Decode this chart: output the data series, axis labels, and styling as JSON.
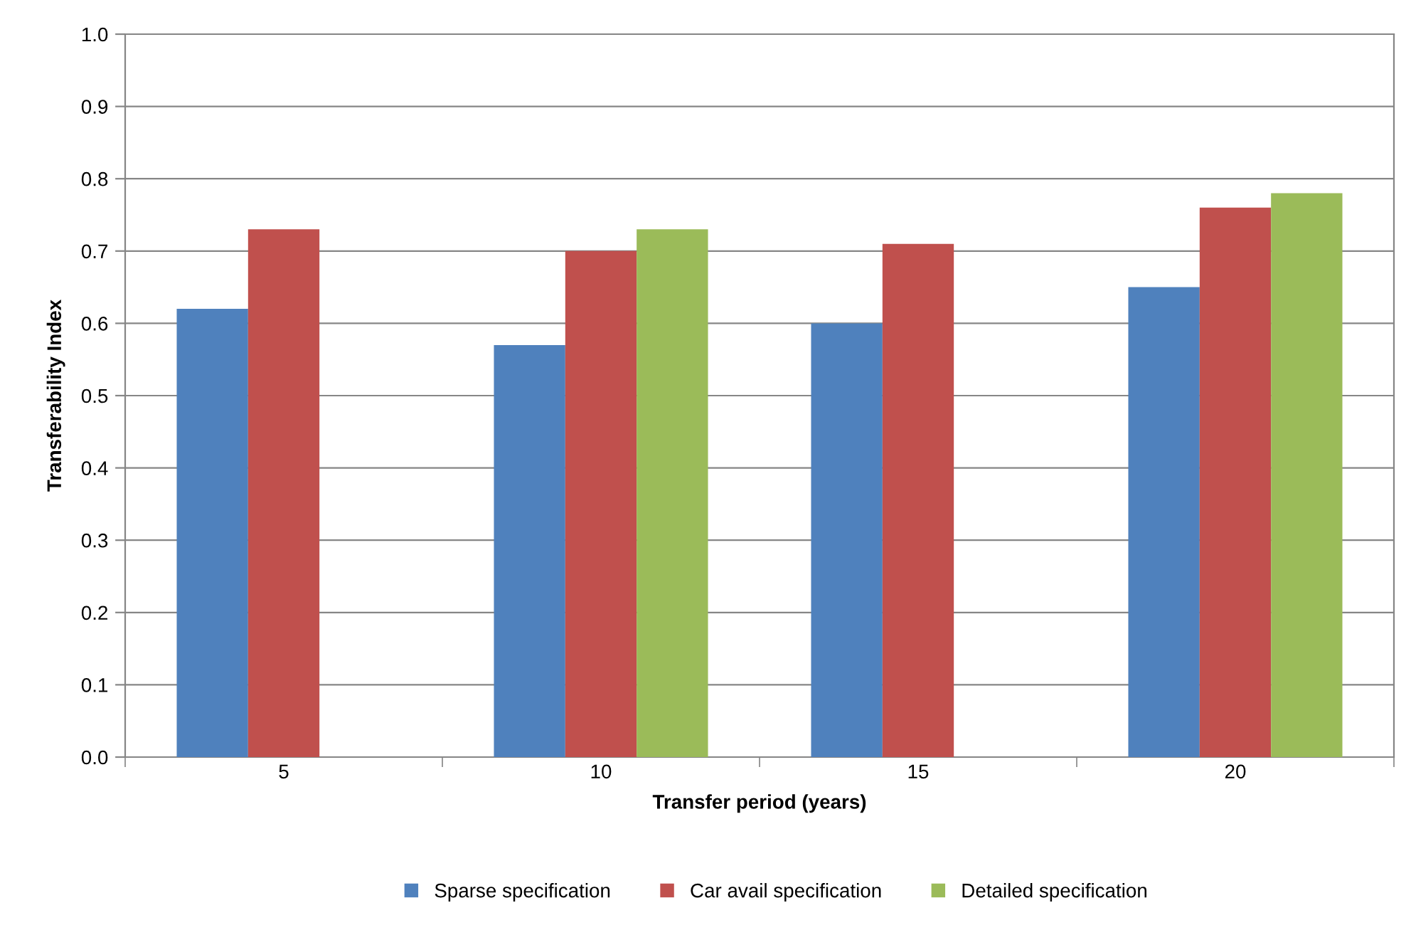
{
  "chart_data": {
    "type": "bar",
    "xlabel": "Transfer period (years)",
    "ylabel": "Transferability Index",
    "categories": [
      "5",
      "10",
      "15",
      "20"
    ],
    "series": [
      {
        "name": "Sparse specification",
        "color": "#4f81bd",
        "values": [
          0.62,
          0.57,
          0.6,
          0.65
        ]
      },
      {
        "name": "Car avail specification",
        "color": "#c0504d",
        "values": [
          0.73,
          0.7,
          0.71,
          0.76
        ]
      },
      {
        "name": "Detailed specification",
        "color": "#9bbb59",
        "values": [
          null,
          0.73,
          null,
          0.78
        ]
      }
    ],
    "ylim": [
      0,
      1.0
    ],
    "yticks": [
      {
        "value": 0,
        "label": "0.0"
      },
      {
        "value": 0.1,
        "label": "0.1"
      },
      {
        "value": 0.2,
        "label": "0.2"
      },
      {
        "value": 0.3,
        "label": "0.3"
      },
      {
        "value": 0.4,
        "label": "0.4"
      },
      {
        "value": 0.5,
        "label": "0.5"
      },
      {
        "value": 0.6,
        "label": "0.6"
      },
      {
        "value": 0.7,
        "label": "0.7"
      },
      {
        "value": 0.8,
        "label": "0.8"
      },
      {
        "value": 0.9,
        "label": "0.9"
      },
      {
        "value": 1.0,
        "label": "1.0"
      }
    ],
    "grid": "y",
    "legend": "bottom"
  }
}
